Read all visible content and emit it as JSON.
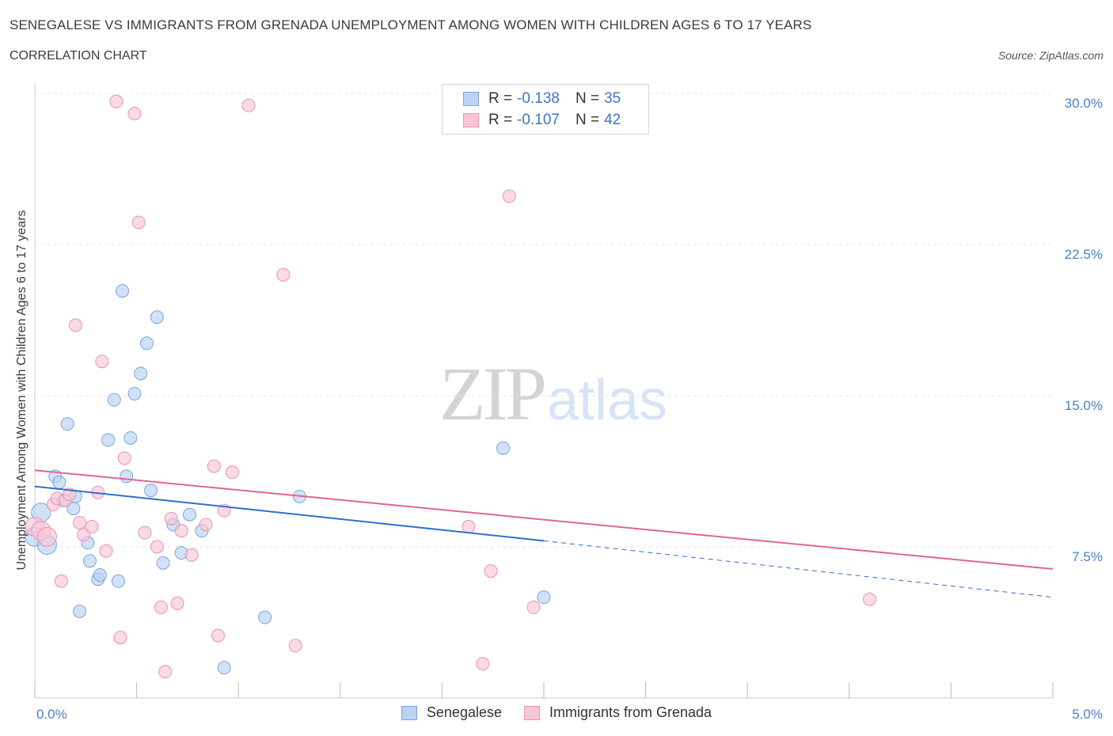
{
  "title": "SENEGALESE VS IMMIGRANTS FROM GRENADA UNEMPLOYMENT AMONG WOMEN WITH CHILDREN AGES 6 TO 17 YEARS",
  "subtitle": "CORRELATION CHART",
  "source": "Source: ZipAtlas.com",
  "watermark": {
    "zip": "ZIP",
    "atlas": "atlas"
  },
  "legend": {
    "rows": [
      {
        "r_label": "R =",
        "r_value": "-0.138",
        "n_label": "N =",
        "n_value": "35"
      },
      {
        "r_label": "R =",
        "r_value": "-0.107",
        "n_label": "N =",
        "n_value": "42"
      }
    ]
  },
  "colors": {
    "blue_fill": "#b9d3f3",
    "blue_stroke": "#7aa6dc",
    "blue_line": "#2f6fd0",
    "pink_fill": "#f7c6d6",
    "pink_stroke": "#eb93b0",
    "pink_line": "#e06590",
    "grid": "#e6e6e6",
    "axis_text": "#4a7fc7"
  },
  "chart_data": {
    "type": "scatter",
    "title": "SENEGALESE VS IMMIGRANTS FROM GRENADA UNEMPLOYMENT AMONG WOMEN WITH CHILDREN AGES 6 TO 17 YEARS",
    "xlabel": "",
    "ylabel": "Unemployment Among Women with Children Ages 6 to 17 years",
    "xlim": [
      0,
      5.0
    ],
    "ylim": [
      0,
      30.0
    ],
    "x_tick_labels": [
      "0.0%",
      "5.0%"
    ],
    "y_ticks": [
      7.5,
      15.0,
      22.5,
      30.0
    ],
    "y_tick_labels": [
      "7.5%",
      "15.0%",
      "22.5%",
      "30.0%"
    ],
    "series": [
      {
        "name": "Senegalese",
        "r": -0.138,
        "n": 35,
        "trend": {
          "x0": 0.0,
          "y0": 10.5,
          "x1": 2.5,
          "y1": 7.8,
          "dash_to_x": 5.0,
          "dash_to_y": 5.0
        },
        "points": [
          [
            0.0,
            8.0
          ],
          [
            0.03,
            9.2
          ],
          [
            0.06,
            7.6
          ],
          [
            0.1,
            11.0
          ],
          [
            0.12,
            10.7
          ],
          [
            0.14,
            9.8
          ],
          [
            0.16,
            13.6
          ],
          [
            0.19,
            9.4
          ],
          [
            0.2,
            10.0
          ],
          [
            0.22,
            4.3
          ],
          [
            0.26,
            7.7
          ],
          [
            0.27,
            6.8
          ],
          [
            0.31,
            5.9
          ],
          [
            0.32,
            6.1
          ],
          [
            0.36,
            12.8
          ],
          [
            0.39,
            14.8
          ],
          [
            0.41,
            5.8
          ],
          [
            0.43,
            20.2
          ],
          [
            0.45,
            11.0
          ],
          [
            0.47,
            12.9
          ],
          [
            0.49,
            15.1
          ],
          [
            0.52,
            16.1
          ],
          [
            0.55,
            17.6
          ],
          [
            0.57,
            10.3
          ],
          [
            0.6,
            18.9
          ],
          [
            0.63,
            6.7
          ],
          [
            0.68,
            8.6
          ],
          [
            0.72,
            7.2
          ],
          [
            0.76,
            9.1
          ],
          [
            0.82,
            8.3
          ],
          [
            0.93,
            1.5
          ],
          [
            1.13,
            4.0
          ],
          [
            1.3,
            10.0
          ],
          [
            2.3,
            12.4
          ],
          [
            2.5,
            5.0
          ]
        ]
      },
      {
        "name": "Immigrants from Grenada",
        "r": -0.107,
        "n": 42,
        "trend": {
          "x0": 0.0,
          "y0": 11.3,
          "x1": 5.0,
          "y1": 6.4
        },
        "points": [
          [
            0.0,
            8.5
          ],
          [
            0.03,
            8.3
          ],
          [
            0.06,
            8.0
          ],
          [
            0.09,
            9.6
          ],
          [
            0.11,
            9.9
          ],
          [
            0.13,
            5.8
          ],
          [
            0.15,
            9.8
          ],
          [
            0.17,
            10.1
          ],
          [
            0.2,
            18.5
          ],
          [
            0.22,
            8.7
          ],
          [
            0.24,
            8.1
          ],
          [
            0.28,
            8.5
          ],
          [
            0.31,
            10.2
          ],
          [
            0.33,
            16.7
          ],
          [
            0.35,
            7.3
          ],
          [
            0.4,
            29.6
          ],
          [
            0.42,
            3.0
          ],
          [
            0.44,
            11.9
          ],
          [
            0.49,
            29.0
          ],
          [
            0.51,
            23.6
          ],
          [
            0.54,
            8.2
          ],
          [
            0.6,
            7.5
          ],
          [
            0.62,
            4.5
          ],
          [
            0.64,
            1.3
          ],
          [
            0.67,
            8.9
          ],
          [
            0.7,
            4.7
          ],
          [
            0.72,
            8.3
          ],
          [
            0.77,
            7.1
          ],
          [
            0.84,
            8.6
          ],
          [
            0.88,
            11.5
          ],
          [
            0.9,
            3.1
          ],
          [
            0.93,
            9.3
          ],
          [
            0.97,
            11.2
          ],
          [
            1.05,
            29.4
          ],
          [
            1.22,
            21.0
          ],
          [
            1.28,
            2.6
          ],
          [
            2.13,
            8.5
          ],
          [
            2.2,
            1.7
          ],
          [
            2.24,
            6.3
          ],
          [
            2.33,
            24.9
          ],
          [
            2.45,
            4.5
          ],
          [
            4.1,
            4.9
          ]
        ]
      }
    ]
  }
}
